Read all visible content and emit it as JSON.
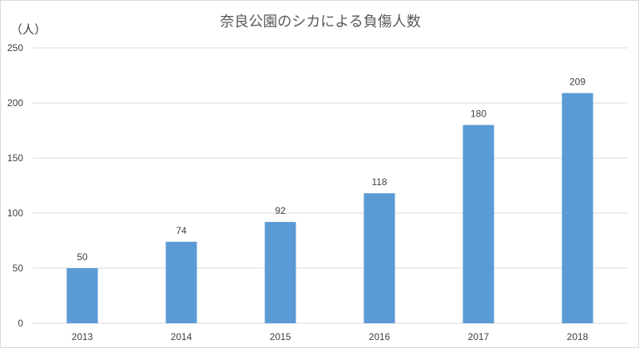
{
  "chart_data": {
    "type": "bar",
    "title": "奈良公園のシカによる負傷人数",
    "ylabel": "（人）",
    "xlabel": "",
    "categories": [
      "2013",
      "2014",
      "2015",
      "2016",
      "2017",
      "2018"
    ],
    "values": [
      50,
      74,
      92,
      118,
      180,
      209
    ],
    "ylim": [
      0,
      250
    ],
    "yticks": [
      "0",
      "50",
      "100",
      "150",
      "200",
      "250"
    ],
    "grid": true,
    "legend": "none",
    "bar_color": "#5b9bd5",
    "data_labels": true
  }
}
